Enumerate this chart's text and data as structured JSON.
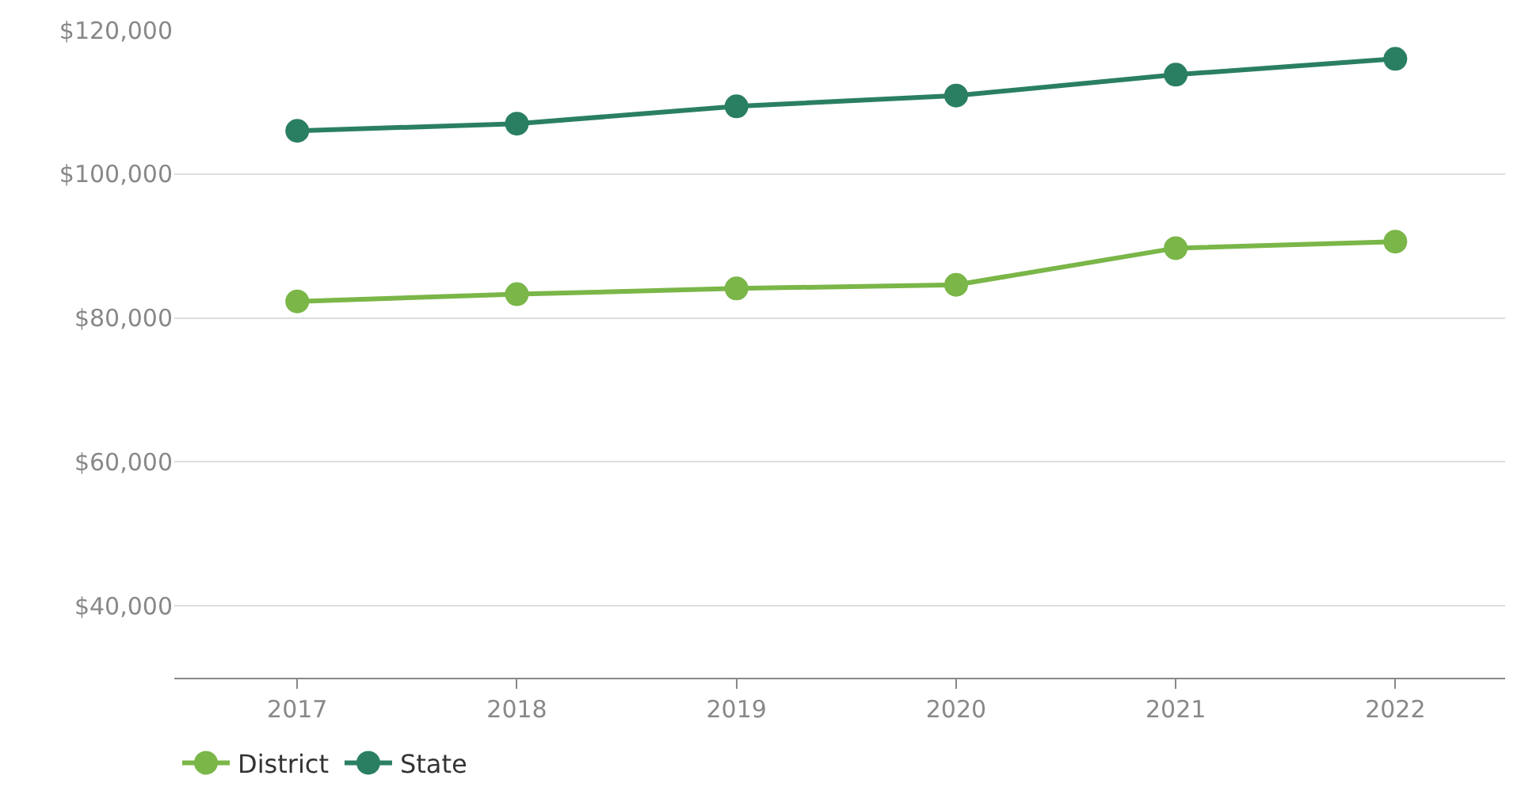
{
  "chart_data": {
    "type": "line",
    "categories": [
      "2017",
      "2018",
      "2019",
      "2020",
      "2021",
      "2022"
    ],
    "series": [
      {
        "name": "District",
        "color": "#7ab648",
        "values": [
          82300,
          83300,
          84100,
          84600,
          89700,
          90600
        ]
      },
      {
        "name": "State",
        "color": "#2a7f62",
        "values": [
          106000,
          107000,
          109400,
          110900,
          113800,
          116000
        ]
      }
    ],
    "ylim": [
      30000,
      120000
    ],
    "yticks": [
      {
        "value": 40000,
        "label": "$40,000"
      },
      {
        "value": 60000,
        "label": "$60,000"
      },
      {
        "value": 80000,
        "label": "$80,000"
      },
      {
        "value": 100000,
        "label": "$100,000"
      },
      {
        "value": 120000,
        "label": "$120,000"
      }
    ],
    "grid": "y",
    "legend": "bottom left",
    "marker": "circle",
    "line_style": "solid"
  }
}
